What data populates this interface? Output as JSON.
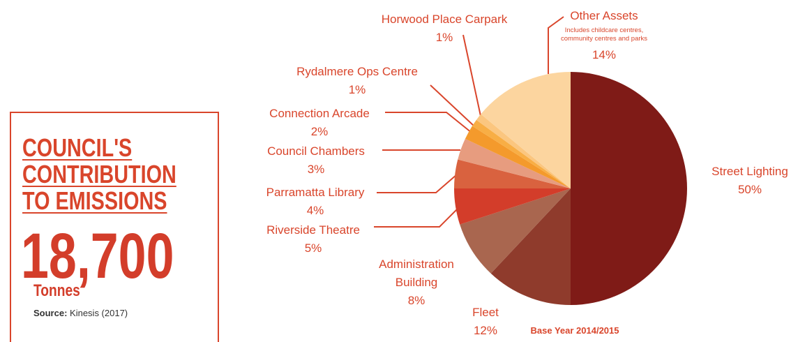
{
  "panel": {
    "title": "COUNCIL'S CONTRIBUTION TO EMISSIONS",
    "value": "18,700",
    "unit": "Tonnes",
    "source_label": "Source:",
    "source": "Kinesis (2017)"
  },
  "chart_data": {
    "type": "pie",
    "categories": [
      "Street Lighting",
      "Fleet",
      "Administration Building",
      "Riverside Theatre",
      "Parramatta Library",
      "Council Chambers",
      "Connection Arcade",
      "Rydalmere Ops Centre",
      "Horwood Place Carpark",
      "Other Assets"
    ],
    "values": [
      50,
      12,
      8,
      5,
      4,
      3,
      2,
      1,
      1,
      14
    ],
    "value_labels": [
      "50%",
      "12%",
      "8%",
      "5%",
      "4%",
      "3%",
      "2%",
      "1%",
      "1%",
      "14%"
    ],
    "colors": [
      "#7f1b17",
      "#8f3b2c",
      "#a9664f",
      "#d33d2a",
      "#d9623f",
      "#e79c7f",
      "#f49a2c",
      "#f8ae45",
      "#fbc67f",
      "#fcd59f"
    ],
    "annotations": [
      "Includes childcare centres, community centres and parks",
      "Base Year 2014/2015"
    ]
  }
}
